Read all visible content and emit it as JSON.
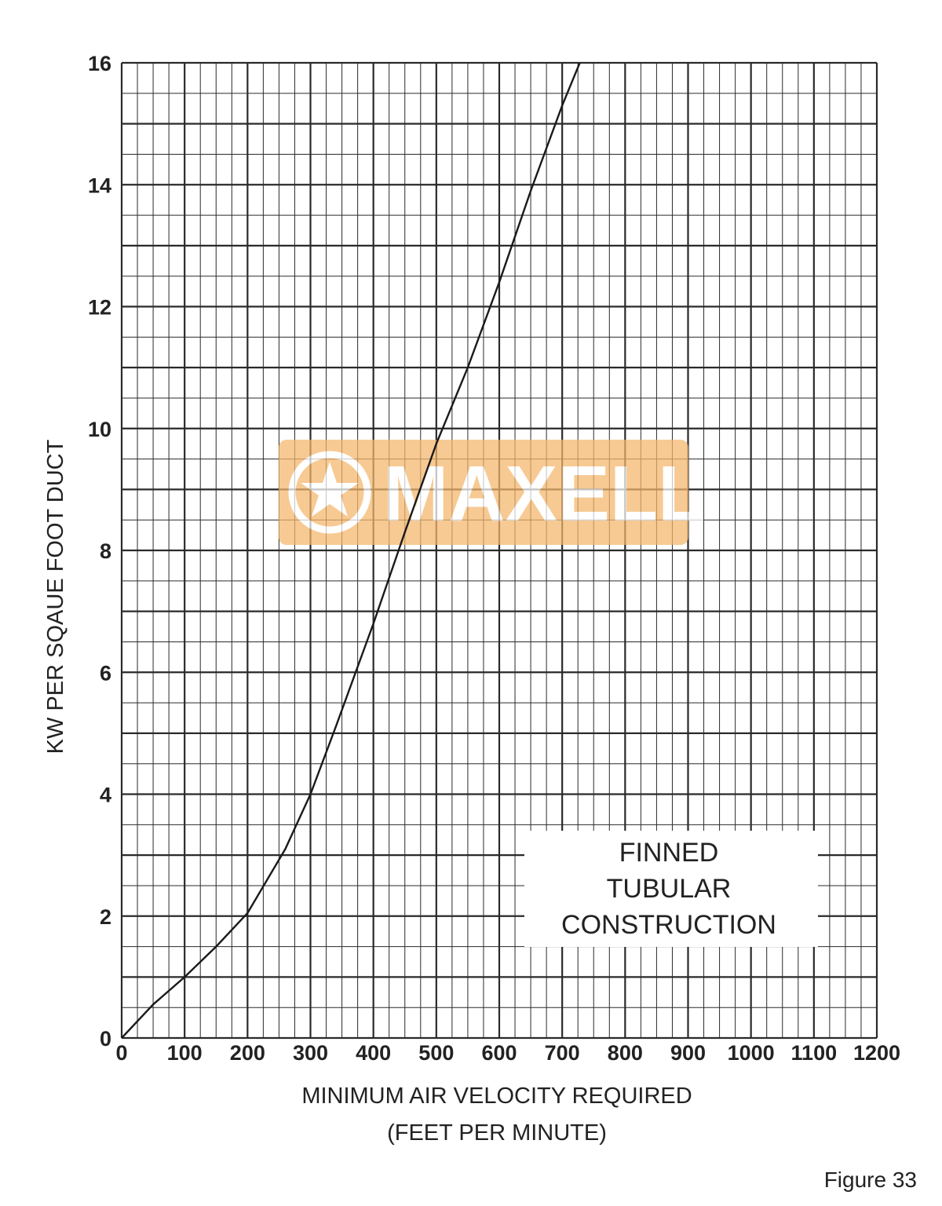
{
  "chart_data": {
    "type": "line",
    "title": "",
    "xlabel": "MINIMUM AIR VELOCITY REQUIRED",
    "xlabel_unit": "(FEET PER MINUTE)",
    "ylabel": "KW PER SQAUE FOOT DUCT",
    "xlim": [
      0,
      1200
    ],
    "ylim": [
      0,
      16
    ],
    "x_ticks": [
      "0",
      "100",
      "200",
      "300",
      "400",
      "500",
      "600",
      "700",
      "800",
      "900",
      "1000",
      "1100",
      "1200"
    ],
    "y_ticks": [
      "0",
      "2",
      "4",
      "6",
      "8",
      "10",
      "12",
      "14",
      "16"
    ],
    "x_major_step": 100,
    "x_minor_step": 25,
    "y_major_step": 1,
    "y_minor_step": 0.5,
    "grid": true,
    "series": [
      {
        "x": [
          0,
          50,
          100,
          150,
          200,
          260,
          300,
          340,
          400,
          450,
          500,
          550,
          600,
          650,
          700,
          728
        ],
        "y": [
          0,
          0.55,
          1.0,
          1.5,
          2.05,
          3.1,
          4.0,
          5.1,
          6.8,
          8.3,
          9.75,
          11.0,
          12.4,
          13.9,
          15.3,
          16.0
        ]
      }
    ],
    "annotation": {
      "lines": [
        "FINNED",
        "TUBULAR",
        "CONSTRUCTION"
      ]
    },
    "watermark": {
      "text": "MAXELL",
      "color": "#f5b66b"
    },
    "line_color": "#1a1a1a",
    "grid_color": "#2a2a2a"
  },
  "figure_label": "Figure 33"
}
